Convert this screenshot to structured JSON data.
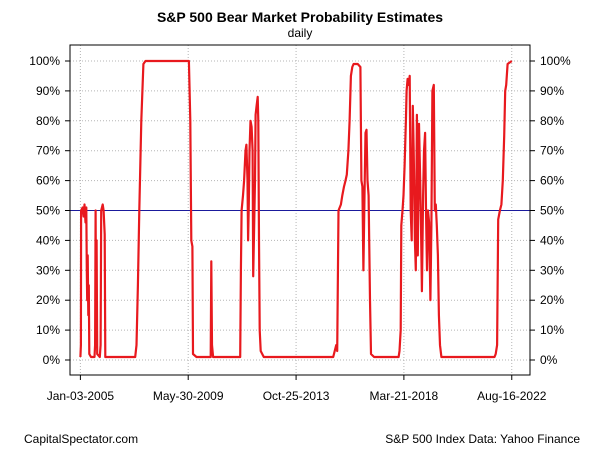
{
  "chart_data": {
    "type": "line",
    "title": "S&P 500 Bear Market Probability Estimates",
    "subtitle": "daily",
    "xlabel": "",
    "ylabel": "",
    "x_tick_labels": [
      "Jan-03-2005",
      "May-30-2009",
      "Oct-25-2013",
      "Mar-21-2018",
      "Aug-16-2022"
    ],
    "y_tick_labels": [
      "0%",
      "10%",
      "20%",
      "30%",
      "40%",
      "50%",
      "60%",
      "70%",
      "80%",
      "90%",
      "100%"
    ],
    "ylim": [
      0,
      100
    ],
    "xlim": [
      "2004-08-01",
      "2023-05-15"
    ],
    "grid": true,
    "reference_line": {
      "value": 50,
      "color": "#1a1a9c"
    },
    "series": [
      {
        "color": "#e8191e",
        "points": [
          [
            "2005-01-03",
            1
          ],
          [
            "2005-01-10",
            5
          ],
          [
            "2005-01-13",
            50
          ],
          [
            "2005-02-05",
            51
          ],
          [
            "2005-02-20",
            48
          ],
          [
            "2005-03-05",
            52
          ],
          [
            "2005-03-20",
            46
          ],
          [
            "2005-04-01",
            51
          ],
          [
            "2005-04-08",
            30
          ],
          [
            "2005-04-15",
            20
          ],
          [
            "2005-04-22",
            35
          ],
          [
            "2005-05-01",
            15
          ],
          [
            "2005-05-08",
            25
          ],
          [
            "2005-05-16",
            2
          ],
          [
            "2005-06-10",
            1
          ],
          [
            "2005-08-01",
            1
          ],
          [
            "2005-08-10",
            5
          ],
          [
            "2005-08-18",
            50
          ],
          [
            "2005-08-25",
            10
          ],
          [
            "2005-09-01",
            40
          ],
          [
            "2005-09-10",
            2
          ],
          [
            "2005-10-20",
            1
          ],
          [
            "2005-11-01",
            5
          ],
          [
            "2005-11-10",
            50
          ],
          [
            "2005-12-01",
            52
          ],
          [
            "2005-12-15",
            50
          ],
          [
            "2006-01-01",
            42
          ],
          [
            "2006-01-10",
            1
          ],
          [
            "2006-06-01",
            1
          ],
          [
            "2007-04-01",
            1
          ],
          [
            "2007-04-20",
            5
          ],
          [
            "2007-05-10",
            25
          ],
          [
            "2007-06-01",
            50
          ],
          [
            "2007-07-01",
            80
          ],
          [
            "2007-08-01",
            99
          ],
          [
            "2007-09-01",
            100
          ],
          [
            "2008-09-01",
            100
          ],
          [
            "2009-05-01",
            100
          ],
          [
            "2009-06-10",
            100
          ],
          [
            "2009-07-01",
            80
          ],
          [
            "2009-07-15",
            40
          ],
          [
            "2009-08-01",
            38
          ],
          [
            "2009-08-10",
            2
          ],
          [
            "2009-10-01",
            1
          ],
          [
            "2010-05-01",
            1
          ],
          [
            "2010-05-10",
            33
          ],
          [
            "2010-05-20",
            5
          ],
          [
            "2010-06-05",
            1
          ],
          [
            "2011-04-01",
            1
          ],
          [
            "2011-07-15",
            1
          ],
          [
            "2011-07-25",
            30
          ],
          [
            "2011-08-05",
            50
          ],
          [
            "2011-08-25",
            55
          ],
          [
            "2011-09-10",
            60
          ],
          [
            "2011-10-01",
            70
          ],
          [
            "2011-10-15",
            72
          ],
          [
            "2011-11-01",
            60
          ],
          [
            "2011-11-10",
            40
          ],
          [
            "2011-11-20",
            52
          ],
          [
            "2011-12-01",
            70
          ],
          [
            "2011-12-15",
            80
          ],
          [
            "2012-01-01",
            78
          ],
          [
            "2012-01-15",
            70
          ],
          [
            "2012-01-25",
            28
          ],
          [
            "2012-02-05",
            42
          ],
          [
            "2012-02-20",
            60
          ],
          [
            "2012-03-01",
            82
          ],
          [
            "2012-03-15",
            85
          ],
          [
            "2012-04-01",
            88
          ],
          [
            "2012-04-10",
            80
          ],
          [
            "2012-04-20",
            40
          ],
          [
            "2012-05-01",
            10
          ],
          [
            "2012-05-15",
            3
          ],
          [
            "2012-07-01",
            1
          ],
          [
            "2013-10-25",
            1
          ],
          [
            "2015-05-01",
            1
          ],
          [
            "2015-06-15",
            5
          ],
          [
            "2015-07-01",
            3
          ],
          [
            "2015-07-20",
            50
          ],
          [
            "2015-08-25",
            52
          ],
          [
            "2015-09-15",
            55
          ],
          [
            "2015-10-10",
            58
          ],
          [
            "2015-11-01",
            60
          ],
          [
            "2015-11-20",
            62
          ],
          [
            "2015-12-15",
            70
          ],
          [
            "2016-01-01",
            80
          ],
          [
            "2016-01-20",
            95
          ],
          [
            "2016-02-10",
            98
          ],
          [
            "2016-03-01",
            99
          ],
          [
            "2016-05-01",
            99
          ],
          [
            "2016-06-10",
            98
          ],
          [
            "2016-06-25",
            60
          ],
          [
            "2016-07-10",
            58
          ],
          [
            "2016-07-25",
            30
          ],
          [
            "2016-08-10",
            55
          ],
          [
            "2016-08-25",
            76
          ],
          [
            "2016-09-10",
            77
          ],
          [
            "2016-09-25",
            60
          ],
          [
            "2016-10-10",
            55
          ],
          [
            "2016-11-01",
            20
          ],
          [
            "2016-11-15",
            2
          ],
          [
            "2017-01-01",
            1
          ],
          [
            "2018-01-01",
            1
          ],
          [
            "2018-01-15",
            3
          ],
          [
            "2018-02-01",
            10
          ],
          [
            "2018-02-10",
            45
          ],
          [
            "2018-03-01",
            50
          ],
          [
            "2018-03-15",
            55
          ],
          [
            "2018-04-01",
            65
          ],
          [
            "2018-04-20",
            80
          ],
          [
            "2018-05-01",
            90
          ],
          [
            "2018-05-15",
            94
          ],
          [
            "2018-06-01",
            92
          ],
          [
            "2018-06-15",
            95
          ],
          [
            "2018-07-01",
            50
          ],
          [
            "2018-07-15",
            40
          ],
          [
            "2018-08-01",
            85
          ],
          [
            "2018-08-15",
            70
          ],
          [
            "2018-09-01",
            40
          ],
          [
            "2018-09-15",
            30
          ],
          [
            "2018-10-01",
            82
          ],
          [
            "2018-10-15",
            35
          ],
          [
            "2018-11-01",
            79
          ],
          [
            "2018-11-20",
            60
          ],
          [
            "2018-12-01",
            45
          ],
          [
            "2018-12-15",
            23
          ],
          [
            "2019-01-01",
            55
          ],
          [
            "2019-01-15",
            70
          ],
          [
            "2019-02-01",
            76
          ],
          [
            "2019-02-15",
            48
          ],
          [
            "2019-03-01",
            30
          ],
          [
            "2019-03-15",
            50
          ],
          [
            "2019-04-01",
            46
          ],
          [
            "2019-04-20",
            20
          ],
          [
            "2019-05-05",
            45
          ],
          [
            "2019-05-20",
            90
          ],
          [
            "2019-06-10",
            92
          ],
          [
            "2019-06-25",
            50
          ],
          [
            "2019-07-10",
            52
          ],
          [
            "2019-07-25",
            45
          ],
          [
            "2019-08-10",
            35
          ],
          [
            "2019-08-25",
            15
          ],
          [
            "2019-09-10",
            5
          ],
          [
            "2019-10-01",
            1
          ],
          [
            "2021-01-01",
            1
          ],
          [
            "2021-12-01",
            1
          ],
          [
            "2021-12-20",
            2
          ],
          [
            "2022-01-10",
            5
          ],
          [
            "2022-01-25",
            47
          ],
          [
            "2022-02-20",
            50
          ],
          [
            "2022-03-15",
            52
          ],
          [
            "2022-04-05",
            60
          ],
          [
            "2022-04-25",
            75
          ],
          [
            "2022-05-10",
            90
          ],
          [
            "2022-05-25",
            92
          ],
          [
            "2022-06-15",
            99
          ],
          [
            "2022-08-16",
            100
          ]
        ]
      }
    ]
  },
  "footer": {
    "left": "CapitalSpectator.com",
    "right": "S&P 500 Index Data: Yahoo Finance"
  }
}
